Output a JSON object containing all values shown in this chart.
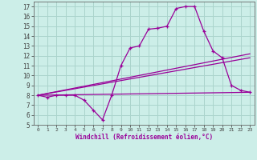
{
  "title": "",
  "xlabel": "Windchill (Refroidissement éolien,°C)",
  "ylabel": "",
  "bg_color": "#cceee8",
  "grid_color": "#aad4cc",
  "line_color": "#990099",
  "xlim": [
    -0.5,
    23.5
  ],
  "ylim": [
    5,
    17.5
  ],
  "xticks": [
    0,
    1,
    2,
    3,
    4,
    5,
    6,
    7,
    8,
    9,
    10,
    11,
    12,
    13,
    14,
    15,
    16,
    17,
    18,
    19,
    20,
    21,
    22,
    23
  ],
  "yticks": [
    5,
    6,
    7,
    8,
    9,
    10,
    11,
    12,
    13,
    14,
    15,
    16,
    17
  ],
  "series1_x": [
    0,
    1,
    2,
    3,
    4,
    5,
    6,
    7,
    8,
    9,
    10,
    11,
    12,
    13,
    14,
    15,
    16,
    17,
    18,
    19,
    20,
    21,
    22,
    23
  ],
  "series1_y": [
    8.0,
    7.8,
    8.0,
    8.0,
    8.0,
    7.5,
    6.5,
    5.5,
    8.0,
    11.0,
    12.8,
    13.0,
    14.7,
    14.8,
    15.0,
    16.8,
    17.0,
    17.0,
    14.5,
    12.5,
    11.8,
    9.0,
    8.5,
    8.3
  ],
  "series2_x": [
    0,
    23
  ],
  "series2_y": [
    8.0,
    8.3
  ],
  "series3_x": [
    0,
    23
  ],
  "series3_y": [
    8.0,
    11.8
  ],
  "series4_x": [
    0,
    23
  ],
  "series4_y": [
    8.0,
    12.2
  ]
}
